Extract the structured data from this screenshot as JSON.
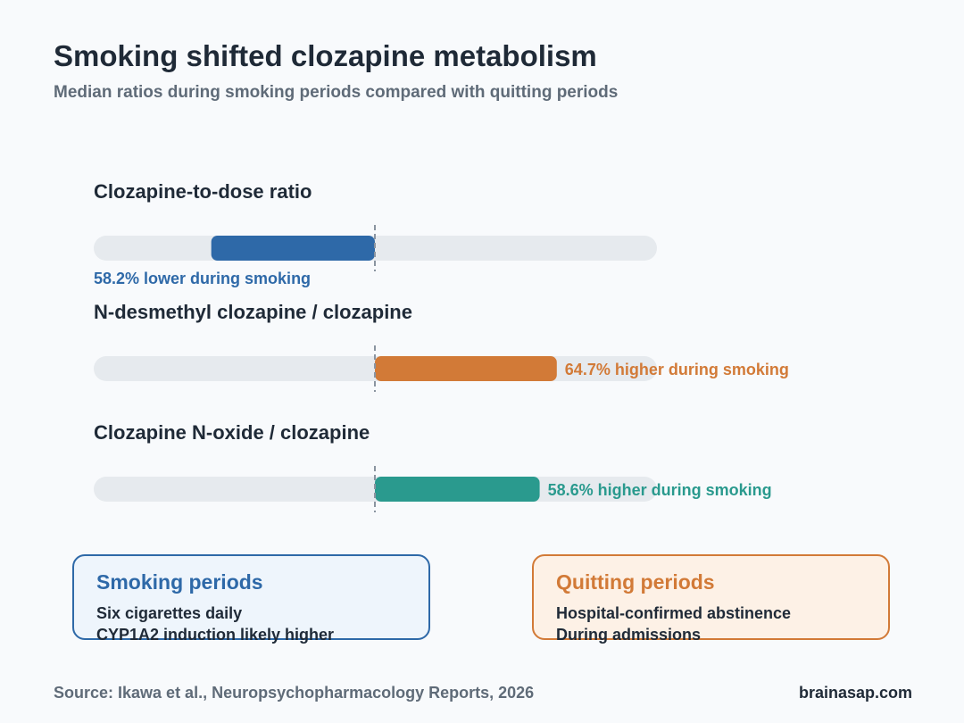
{
  "title": "Smoking shifted clozapine metabolism",
  "subtitle": "Median ratios during smoking periods compared with quitting periods",
  "chart_data": {
    "type": "bar",
    "orientation": "diverging-horizontal",
    "baseline_label": "",
    "range": [
      -100,
      100
    ],
    "series": [
      {
        "name": "Clozapine-to-dose ratio",
        "value": -58.2,
        "label": "58.2% lower during smoking",
        "color": "#2e69a8"
      },
      {
        "name": "N-desmethyl clozapine / clozapine",
        "value": 64.7,
        "label": "64.7% higher during smoking",
        "color": "#d27a37"
      },
      {
        "name": "Clozapine N-oxide / clozapine",
        "value": 58.6,
        "label": "58.6% higher during smoking",
        "color": "#2a9a8e"
      }
    ]
  },
  "legend": {
    "smoking": {
      "title": "Smoking periods",
      "lines": [
        "Six cigarettes daily",
        "CYP1A2 induction likely higher"
      ]
    },
    "quitting": {
      "title": "Quitting periods",
      "lines": [
        "Hospital-confirmed abstinence",
        "During admissions"
      ]
    }
  },
  "footer": {
    "source": "Source: Ikawa et al., Neuropsychopharmacology Reports, 2026",
    "brand": "brainasap.com"
  }
}
